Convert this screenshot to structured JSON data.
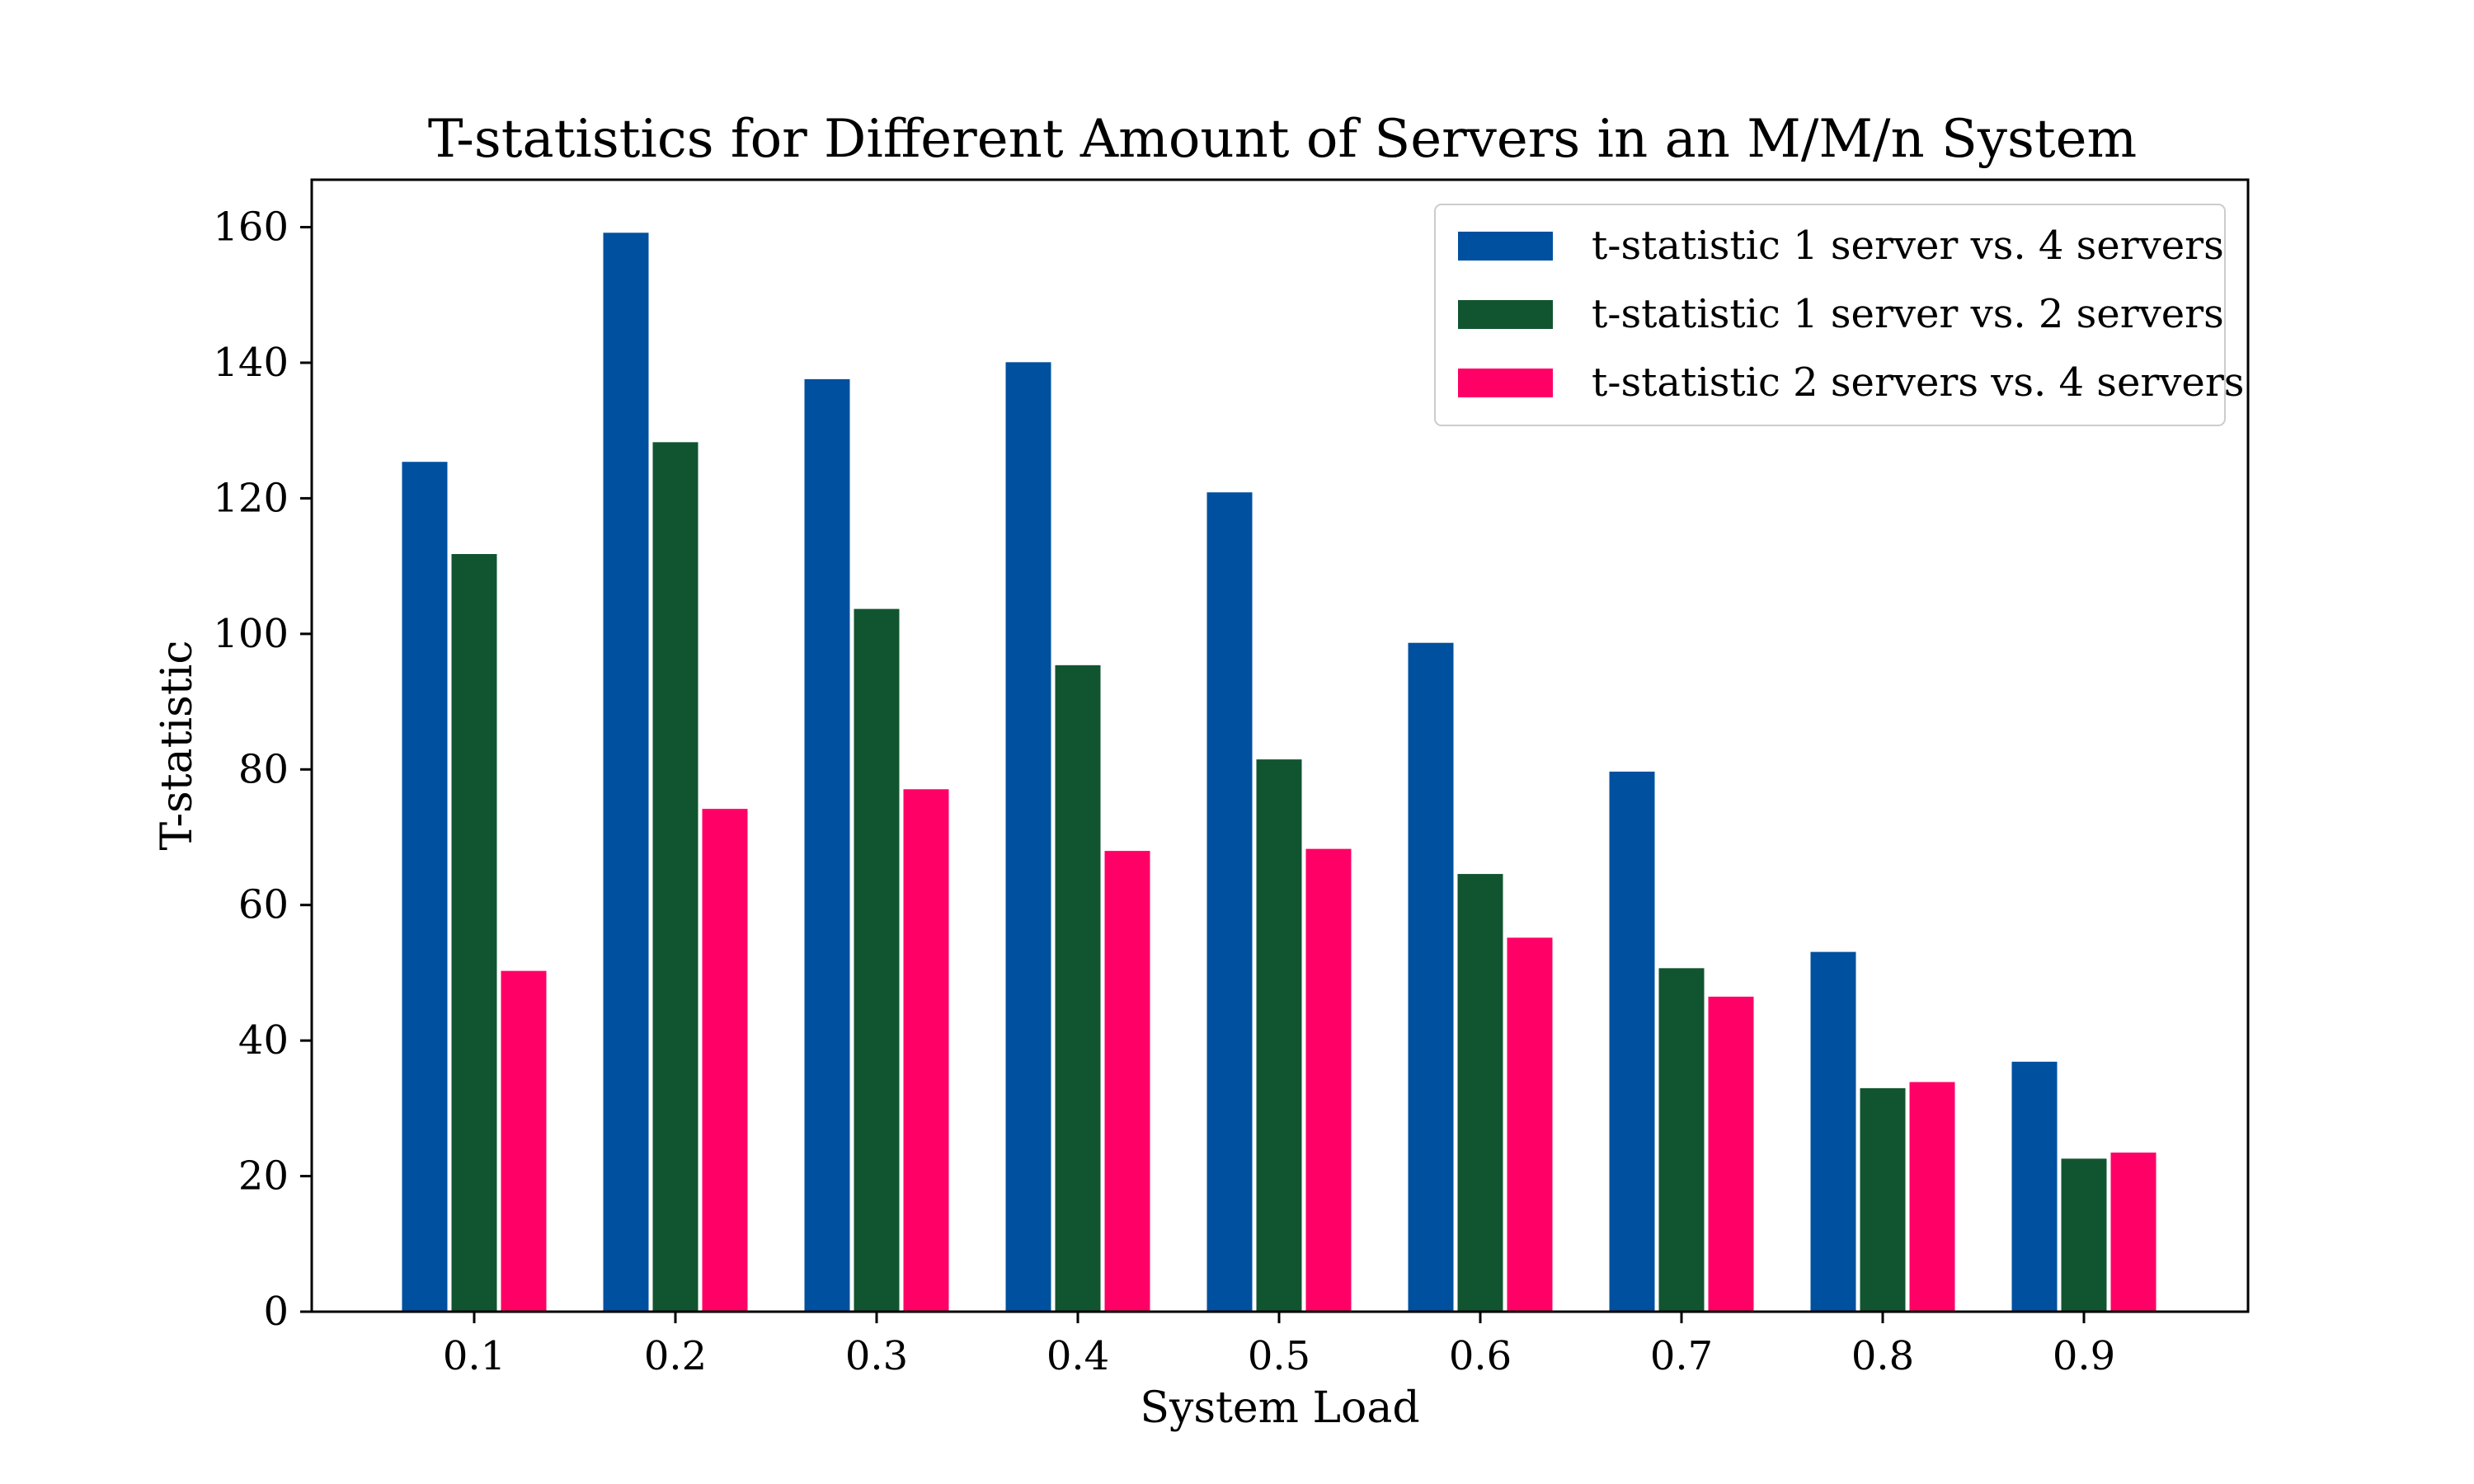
{
  "chart_data": {
    "type": "bar",
    "title": "T-statistics for Different Amount of Servers in an M/M/n System",
    "xlabel": "System Load",
    "ylabel": "T-statistic",
    "categories": [
      "0.1",
      "0.2",
      "0.3",
      "0.4",
      "0.5",
      "0.6",
      "0.7",
      "0.8",
      "0.9"
    ],
    "ylim": [
      0,
      167
    ],
    "yticks": [
      0,
      20,
      40,
      60,
      80,
      100,
      120,
      140,
      160
    ],
    "grid": false,
    "legend_position": "top-right",
    "series": [
      {
        "name": "t-statistic 1 server vs. 4 servers",
        "color": "#0050a0",
        "values": [
          125.5,
          159.3,
          137.7,
          140.2,
          121.0,
          98.8,
          79.8,
          53.2,
          37.0
        ]
      },
      {
        "name": "t-statistic 1 server vs. 2 servers",
        "color": "#115530",
        "values": [
          111.9,
          128.4,
          103.8,
          95.5,
          81.6,
          64.7,
          50.8,
          33.1,
          22.7
        ]
      },
      {
        "name": "t-statistic 2 servers vs. 4 servers",
        "color": "#ff0066",
        "values": [
          50.4,
          74.3,
          77.2,
          68.1,
          68.4,
          55.3,
          46.6,
          34.0,
          23.6
        ]
      }
    ]
  }
}
